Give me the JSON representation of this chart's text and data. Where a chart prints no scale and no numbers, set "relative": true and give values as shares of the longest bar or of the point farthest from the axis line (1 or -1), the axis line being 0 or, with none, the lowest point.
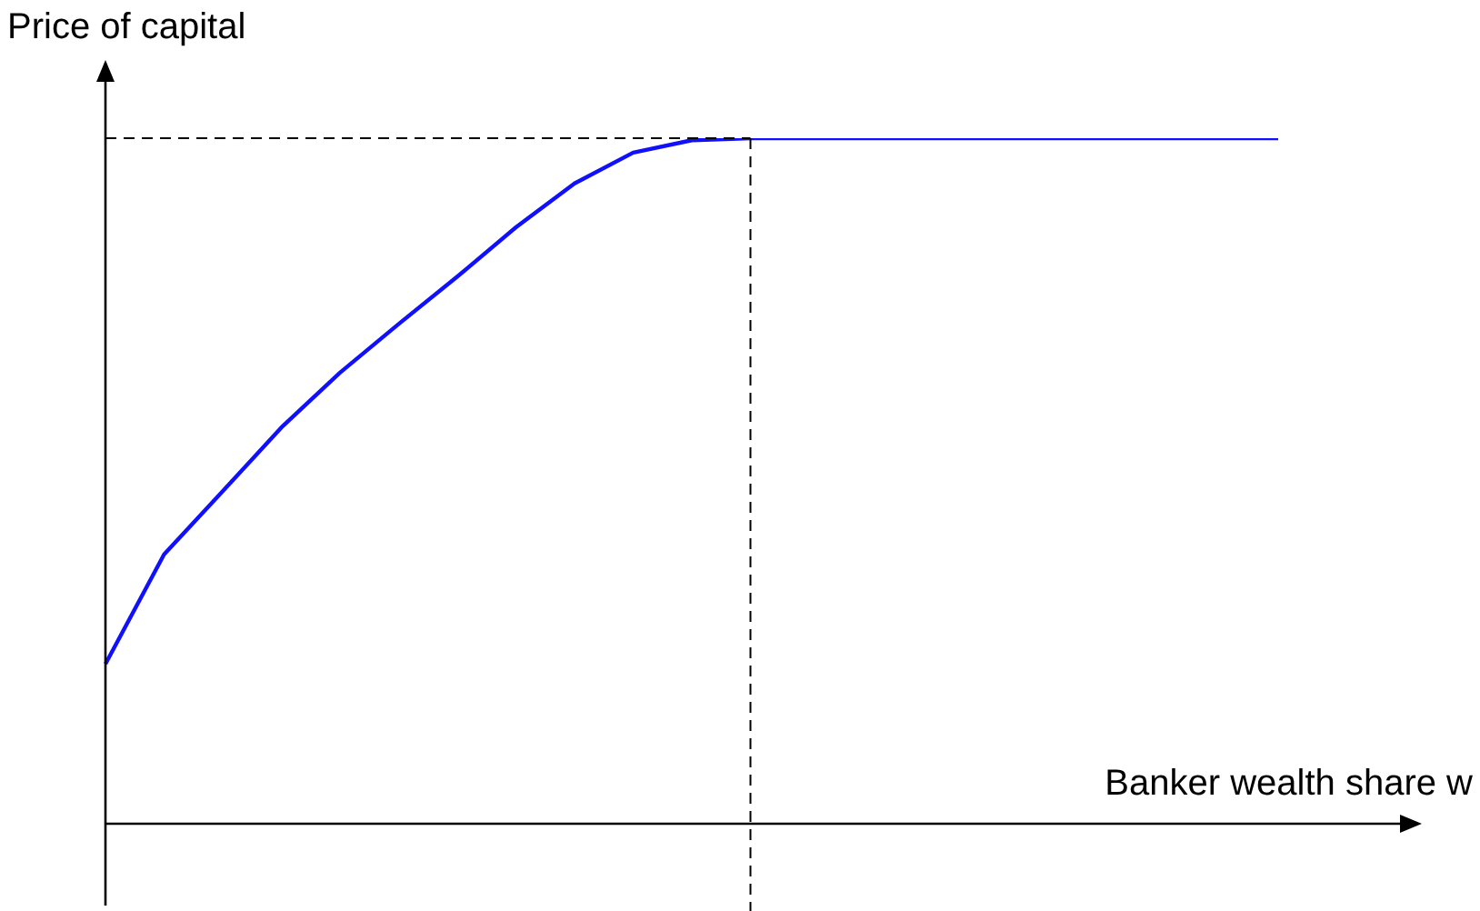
{
  "chart_data": {
    "type": "line",
    "ylabel": "Price of capital",
    "xlabel": "Banker wealth share w",
    "relative": true,
    "marker": "none",
    "line_style": "solid",
    "categories": [
      null,
      null,
      null,
      null,
      null,
      null,
      null,
      null,
      null,
      null,
      null,
      null,
      null,
      null,
      null,
      null,
      null,
      null,
      null,
      null,
      null
    ],
    "series": [
      {
        "color": "#1010ff",
        "values": [
          0.233,
          0.393,
          0.485,
          0.578,
          0.658,
          0.729,
          0.798,
          0.87,
          0.934,
          0.979,
          0.997,
          1,
          1,
          1,
          1,
          1,
          1,
          1,
          1,
          1,
          1
        ]
      }
    ],
    "ref_lines": [
      {
        "axis": "y",
        "value": 1,
        "color": "#000000",
        "line_style": "dashed"
      }
    ]
  }
}
